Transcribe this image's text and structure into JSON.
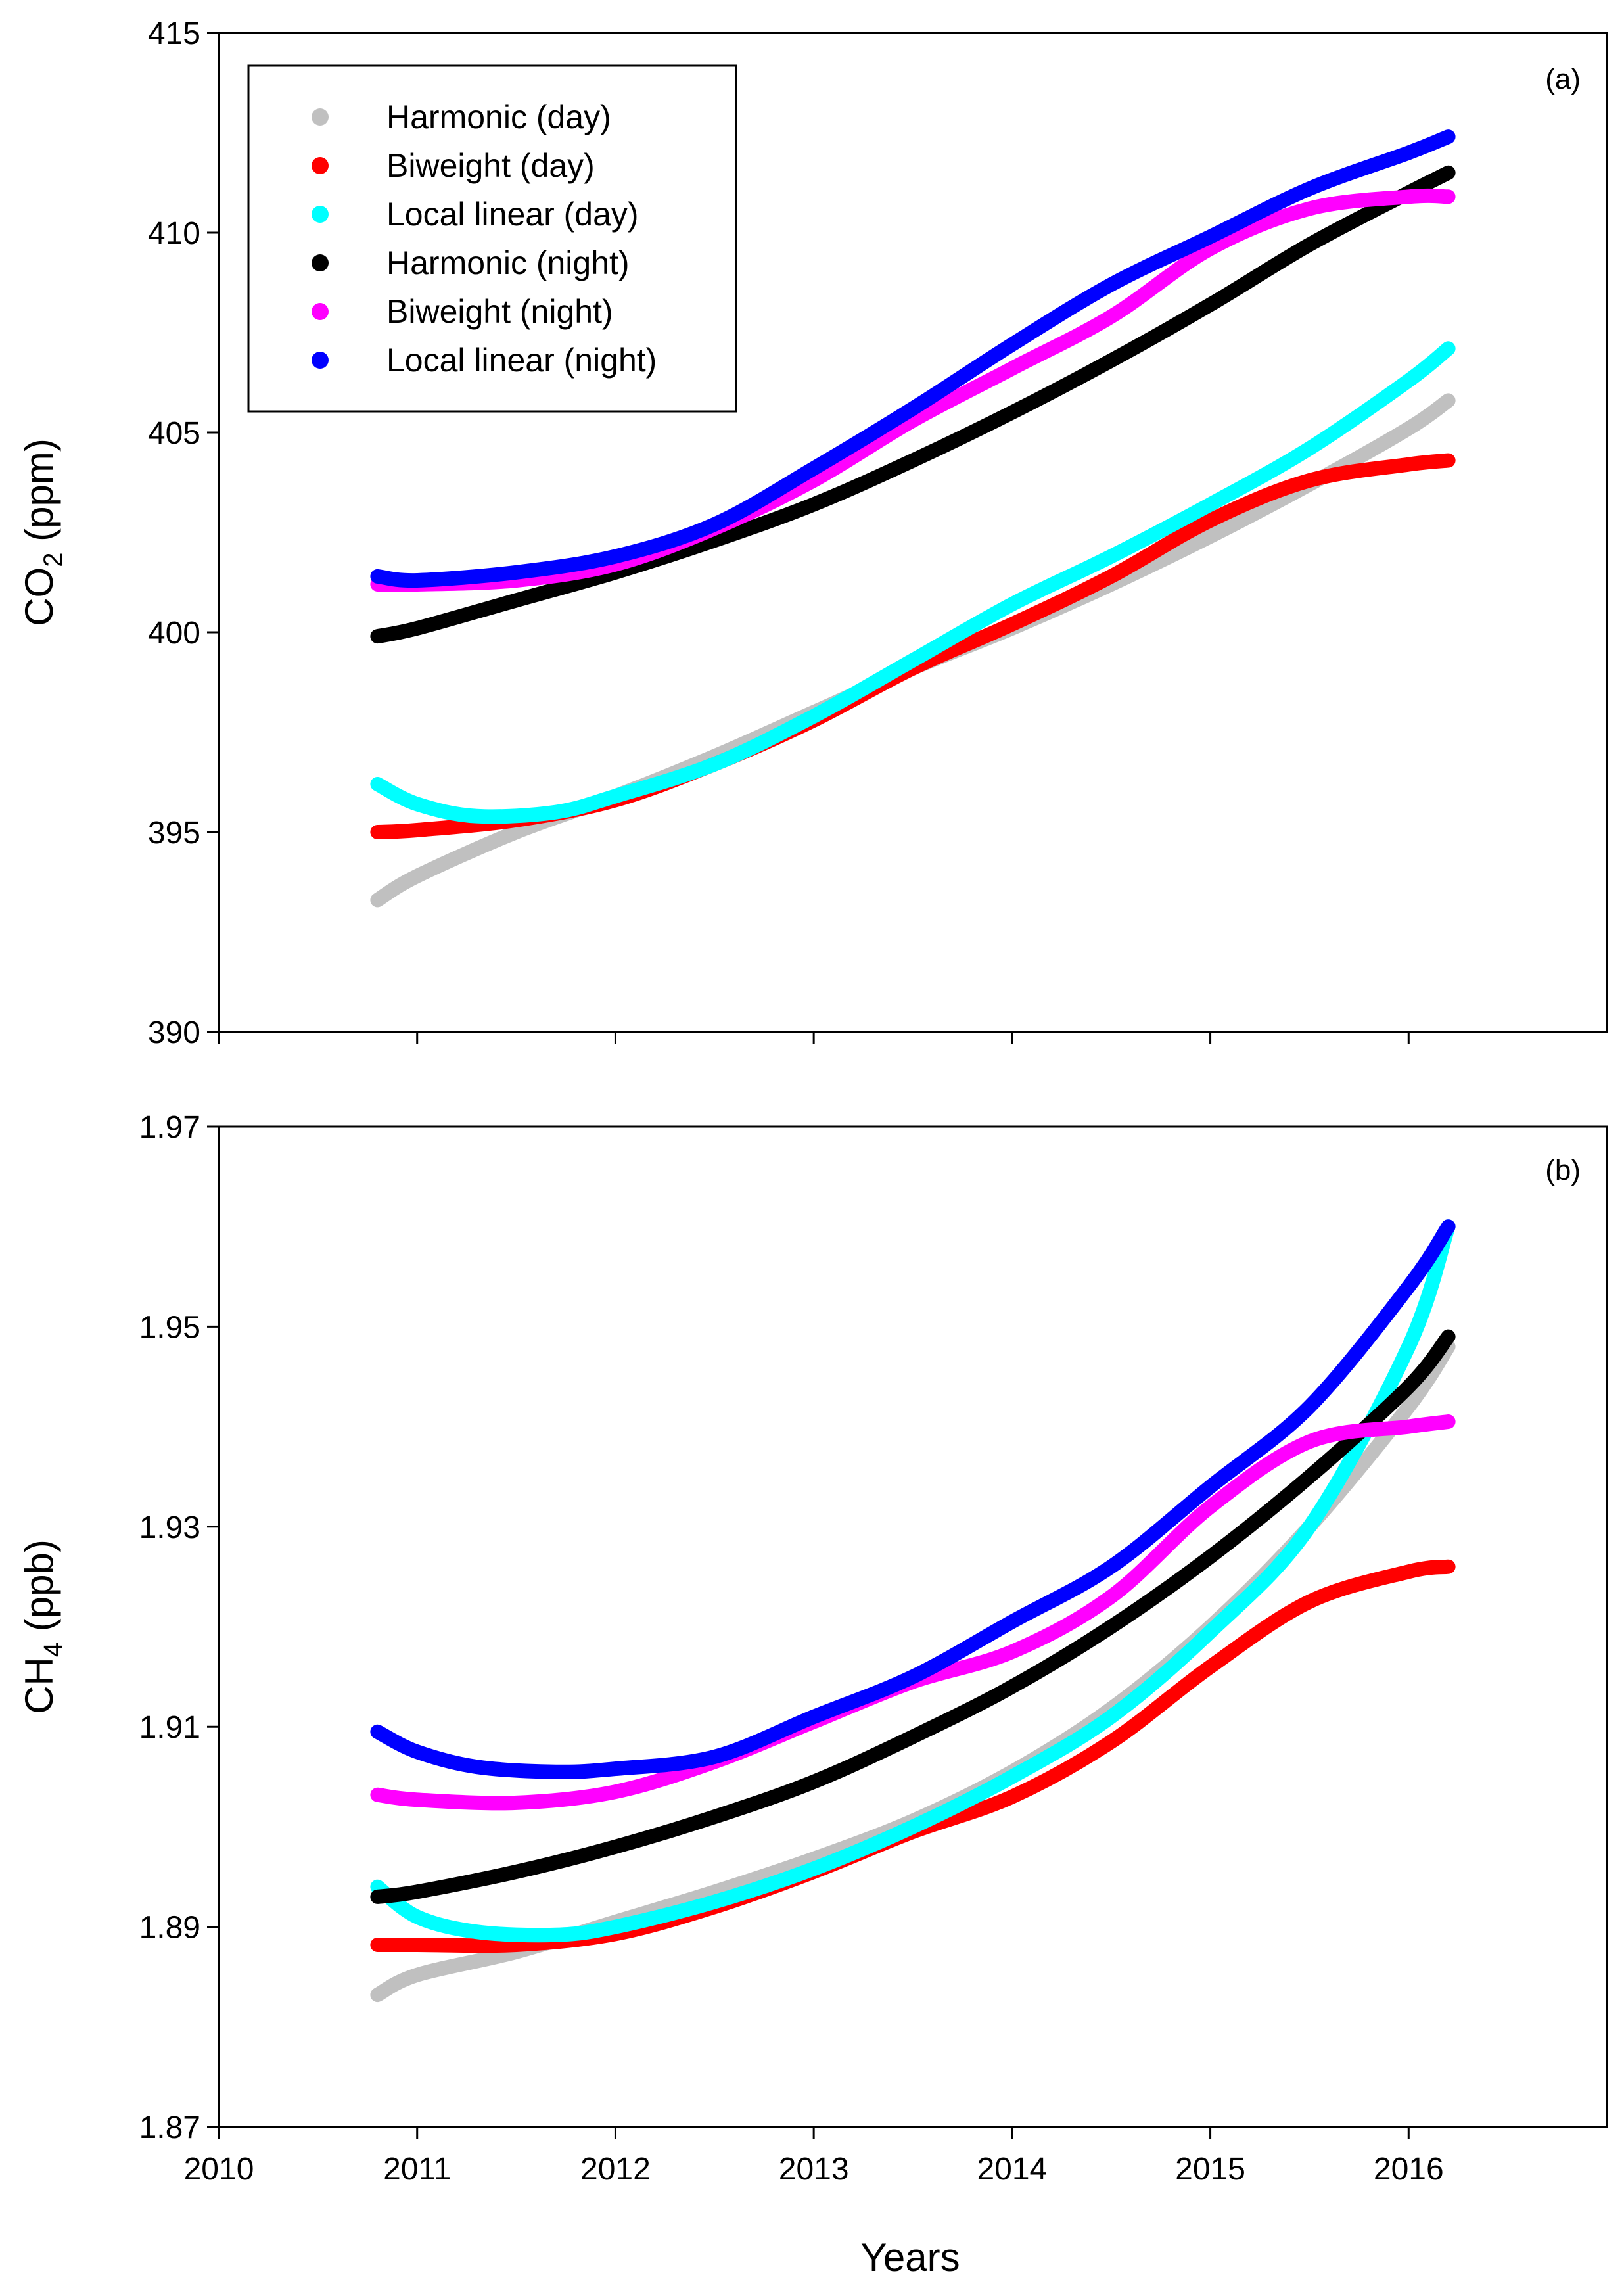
{
  "chart_data": {
    "type": "line",
    "x_axis": {
      "label": "Years",
      "range": [
        2010,
        2017
      ],
      "ticks": [
        2010,
        2011,
        2012,
        2013,
        2014,
        2015,
        2016
      ],
      "tick_labels": [
        "2010",
        "2011",
        "2012",
        "2013",
        "2014",
        "2015",
        "2016"
      ]
    },
    "legend": {
      "placement": "top-left (panel a)",
      "entries": [
        {
          "name": "Harmonic (day)",
          "color": "#c0c0c0"
        },
        {
          "name": "Biweight (day)",
          "color": "#ff0000"
        },
        {
          "name": "Local linear (day)",
          "color": "#00ffff"
        },
        {
          "name": "Harmonic (night)",
          "color": "#000000"
        },
        {
          "name": "Biweight (night)",
          "color": "#ff00ff"
        },
        {
          "name": "Local linear (night)",
          "color": "#0000ff"
        }
      ]
    },
    "panels": [
      {
        "panel_label": "(a)",
        "ylabel": {
          "main": "CO",
          "sub": "2",
          "unit": " (ppm)"
        },
        "ylim": [
          390,
          415
        ],
        "y_ticks": [
          390,
          395,
          400,
          405,
          410,
          415
        ],
        "y_tick_labels": [
          "390",
          "395",
          "400",
          "405",
          "410",
          "415"
        ],
        "series": [
          {
            "name": "Harmonic (day)",
            "color": "#c0c0c0",
            "x": [
              2010.8,
              2011.0,
              2011.5,
              2012.0,
              2012.5,
              2013.0,
              2013.5,
              2014.0,
              2014.5,
              2015.0,
              2015.5,
              2016.0,
              2016.2
            ],
            "values": [
              393.3,
              393.9,
              395.0,
              395.9,
              396.9,
              398.0,
              399.1,
              400.1,
              401.2,
              402.4,
              403.7,
              405.1,
              405.8
            ]
          },
          {
            "name": "Biweight (day)",
            "color": "#ff0000",
            "x": [
              2010.8,
              2011.0,
              2011.5,
              2012.0,
              2012.5,
              2013.0,
              2013.5,
              2014.0,
              2014.5,
              2015.0,
              2015.5,
              2016.0,
              2016.2
            ],
            "values": [
              395.0,
              395.05,
              395.3,
              395.8,
              396.7,
              397.8,
              399.1,
              400.2,
              401.4,
              402.8,
              403.8,
              404.2,
              404.3
            ]
          },
          {
            "name": "Local linear (day)",
            "color": "#00ffff",
            "x": [
              2010.8,
              2011.0,
              2011.3,
              2011.7,
              2012.0,
              2012.5,
              2013.0,
              2013.5,
              2014.0,
              2014.5,
              2015.0,
              2015.5,
              2016.0,
              2016.2
            ],
            "values": [
              396.2,
              395.7,
              395.4,
              395.5,
              395.9,
              396.7,
              397.9,
              399.3,
              400.7,
              401.9,
              403.2,
              404.6,
              406.3,
              407.1
            ]
          },
          {
            "name": "Harmonic (night)",
            "color": "#000000",
            "x": [
              2010.8,
              2011.0,
              2011.5,
              2012.0,
              2012.5,
              2013.0,
              2013.5,
              2014.0,
              2014.5,
              2015.0,
              2015.5,
              2016.0,
              2016.2
            ],
            "values": [
              399.9,
              400.1,
              400.8,
              401.5,
              402.3,
              403.2,
              404.3,
              405.5,
              406.8,
              408.2,
              409.7,
              411.0,
              411.5
            ]
          },
          {
            "name": "Biweight (night)",
            "color": "#ff00ff",
            "x": [
              2010.8,
              2011.0,
              2011.5,
              2012.0,
              2012.5,
              2013.0,
              2013.5,
              2014.0,
              2014.5,
              2015.0,
              2015.5,
              2016.0,
              2016.2
            ],
            "values": [
              401.2,
              401.2,
              401.3,
              401.7,
              402.6,
              403.8,
              405.3,
              406.6,
              407.9,
              409.6,
              410.6,
              410.9,
              410.9
            ]
          },
          {
            "name": "Local linear (night)",
            "color": "#0000ff",
            "x": [
              2010.8,
              2011.0,
              2011.5,
              2012.0,
              2012.5,
              2013.0,
              2013.5,
              2014.0,
              2014.5,
              2015.0,
              2015.5,
              2016.0,
              2016.2
            ],
            "values": [
              401.4,
              401.3,
              401.5,
              401.9,
              402.7,
              404.1,
              405.6,
              407.2,
              408.7,
              409.9,
              411.1,
              412.0,
              412.4
            ]
          }
        ]
      },
      {
        "panel_label": "(b)",
        "ylabel": {
          "main": "CH",
          "sub": "4",
          "unit": " (ppb)"
        },
        "ylim": [
          1.87,
          1.97
        ],
        "y_ticks": [
          1.87,
          1.89,
          1.91,
          1.93,
          1.95,
          1.97
        ],
        "y_tick_labels": [
          "1.87",
          "1.89",
          "1.91",
          "1.93",
          "1.95",
          "1.97"
        ],
        "series": [
          {
            "name": "Harmonic (day)",
            "color": "#c0c0c0",
            "x": [
              2010.8,
              2011.0,
              2011.5,
              2012.0,
              2012.5,
              2013.0,
              2013.5,
              2014.0,
              2014.5,
              2015.0,
              2015.5,
              2016.0,
              2016.2
            ],
            "values": [
              1.8832,
              1.8852,
              1.8875,
              1.8905,
              1.8935,
              1.8968,
              1.9006,
              1.9055,
              1.9118,
              1.92,
              1.93,
              1.942,
              1.948
            ]
          },
          {
            "name": "Biweight (day)",
            "color": "#ff0000",
            "x": [
              2010.8,
              2011.0,
              2011.5,
              2012.0,
              2012.5,
              2013.0,
              2013.5,
              2014.0,
              2014.5,
              2015.0,
              2015.5,
              2016.0,
              2016.2
            ],
            "values": [
              1.8882,
              1.8882,
              1.8882,
              1.8893,
              1.892,
              1.8955,
              1.8995,
              1.903,
              1.9085,
              1.916,
              1.9225,
              1.9255,
              1.926
            ]
          },
          {
            "name": "Local linear (day)",
            "color": "#00ffff",
            "x": [
              2010.8,
              2011.0,
              2011.3,
              2011.7,
              2012.0,
              2012.5,
              2013.0,
              2013.5,
              2014.0,
              2014.5,
              2015.0,
              2015.5,
              2016.0,
              2016.2
            ],
            "values": [
              1.894,
              1.891,
              1.8895,
              1.8892,
              1.89,
              1.8925,
              1.8958,
              1.9,
              1.905,
              1.911,
              1.9195,
              1.93,
              1.948,
              1.96
            ]
          },
          {
            "name": "Harmonic (night)",
            "color": "#000000",
            "x": [
              2010.8,
              2011.0,
              2011.5,
              2012.0,
              2012.5,
              2013.0,
              2013.5,
              2014.0,
              2014.5,
              2015.0,
              2015.5,
              2016.0,
              2016.2
            ],
            "values": [
              1.893,
              1.8935,
              1.8955,
              1.898,
              1.901,
              1.9045,
              1.909,
              1.914,
              1.92,
              1.927,
              1.935,
              1.944,
              1.949
            ]
          },
          {
            "name": "Biweight (night)",
            "color": "#ff00ff",
            "x": [
              2010.8,
              2011.0,
              2011.5,
              2012.0,
              2012.5,
              2013.0,
              2013.5,
              2014.0,
              2014.5,
              2015.0,
              2015.5,
              2016.0,
              2016.2
            ],
            "values": [
              1.9032,
              1.9027,
              1.9024,
              1.9035,
              1.9065,
              1.9105,
              1.9145,
              1.9175,
              1.923,
              1.932,
              1.9385,
              1.94,
              1.9405
            ]
          },
          {
            "name": "Local linear (night)",
            "color": "#0000ff",
            "x": [
              2010.8,
              2011.0,
              2011.3,
              2011.7,
              2012.0,
              2012.5,
              2013.0,
              2013.5,
              2014.0,
              2014.5,
              2015.0,
              2015.5,
              2016.0,
              2016.2
            ],
            "values": [
              1.9095,
              1.9075,
              1.906,
              1.9055,
              1.9058,
              1.907,
              1.911,
              1.915,
              1.9205,
              1.926,
              1.934,
              1.942,
              1.954,
              1.96
            ]
          }
        ]
      }
    ]
  }
}
